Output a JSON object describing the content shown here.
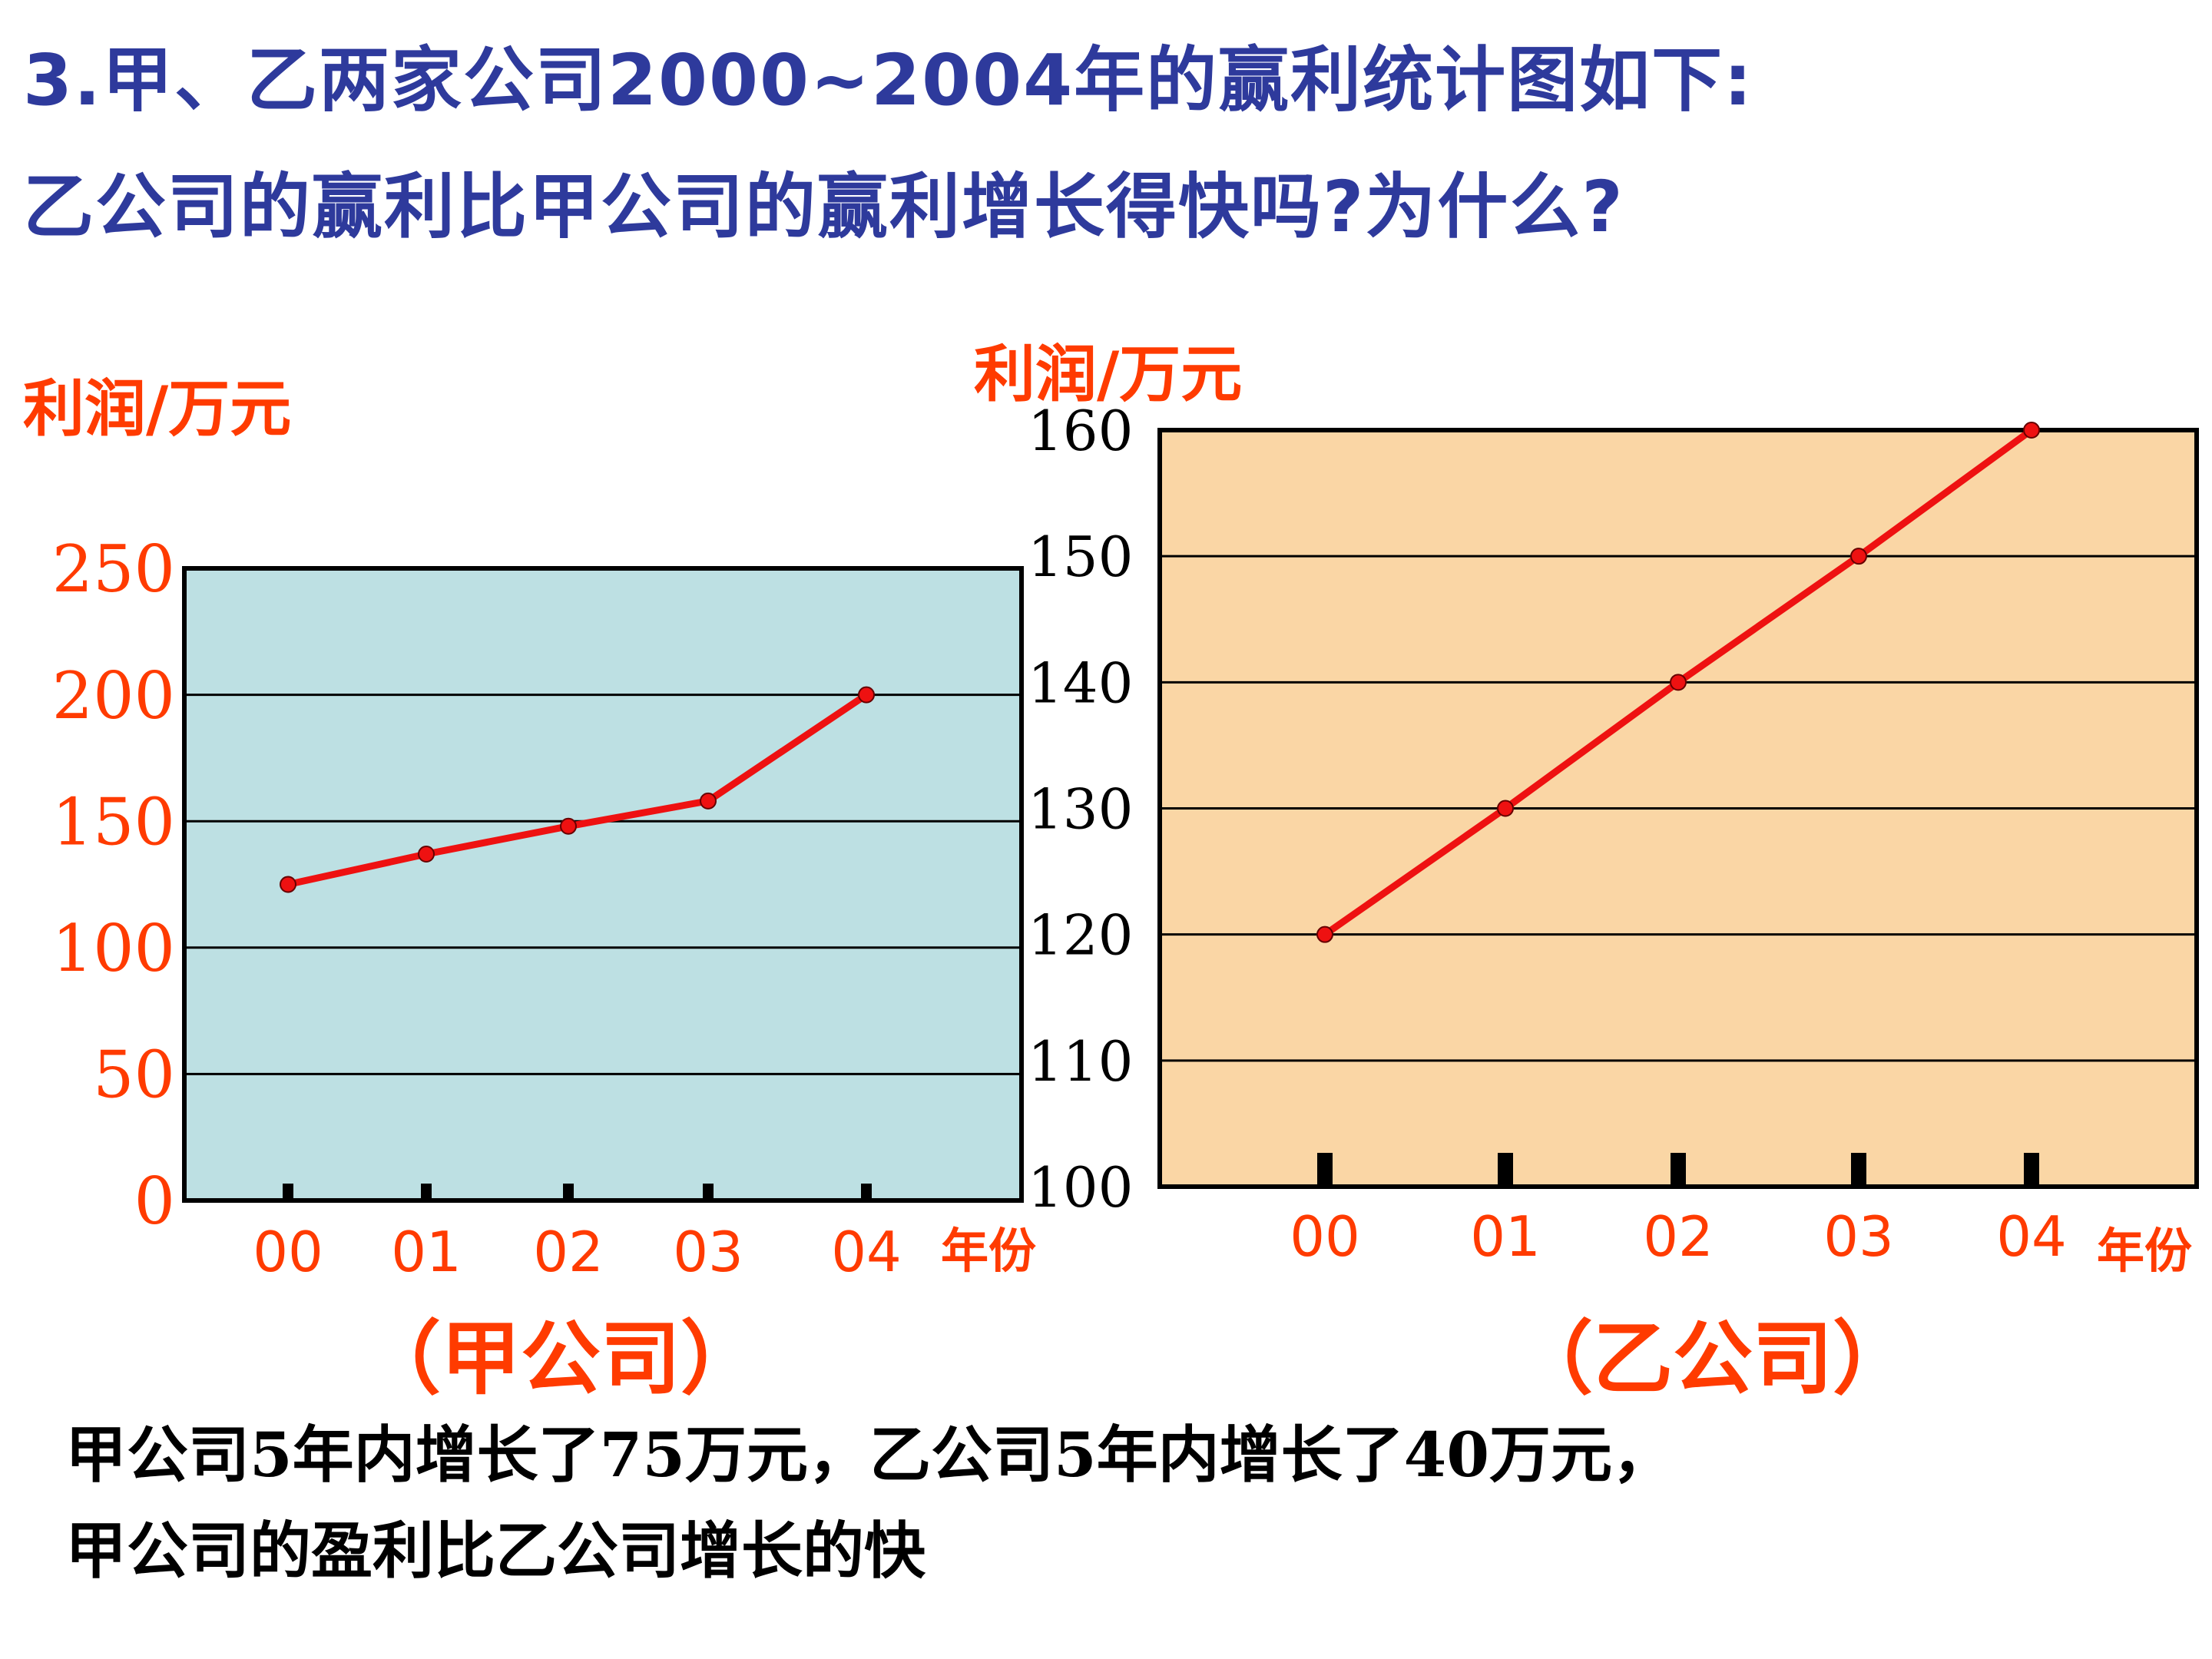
{
  "question": {
    "line1": "3.甲、乙两家公司2000~2004年的赢利统计图如下:",
    "line2": "乙公司的赢利比甲公司的赢利增长得快吗?为什么?"
  },
  "answer": {
    "line1": "甲公司5年内增长了75万元，乙公司5年内增长了40万元，",
    "line2": "甲公司的盈利比乙公司增长的快"
  },
  "colors": {
    "title": "#2e3a9c",
    "label": "#ff3b00",
    "line": "#ee1111",
    "chart1_bg": "#bde0e3",
    "chart2_bg": "#fad6a5"
  },
  "chart_data": [
    {
      "type": "line",
      "name": "甲公司",
      "caption": "（甲公司）",
      "ylabel": "利润/万元",
      "xlabel": "年份",
      "categories": [
        "00",
        "01",
        "02",
        "03",
        "04"
      ],
      "values": [
        125,
        137,
        148,
        158,
        200
      ],
      "ylim": [
        0,
        250
      ],
      "yticks": [
        "0",
        "50",
        "100",
        "150",
        "200",
        "250"
      ],
      "grid": true
    },
    {
      "type": "line",
      "name": "乙公司",
      "caption": "（乙公司）",
      "ylabel": "利润/万元",
      "xlabel": "年份",
      "categories": [
        "00",
        "01",
        "02",
        "03",
        "04"
      ],
      "values": [
        120,
        130,
        140,
        150,
        160
      ],
      "ylim": [
        100,
        160
      ],
      "yticks": [
        "100",
        "110",
        "120",
        "130",
        "140",
        "150",
        "160"
      ],
      "grid": true
    }
  ]
}
